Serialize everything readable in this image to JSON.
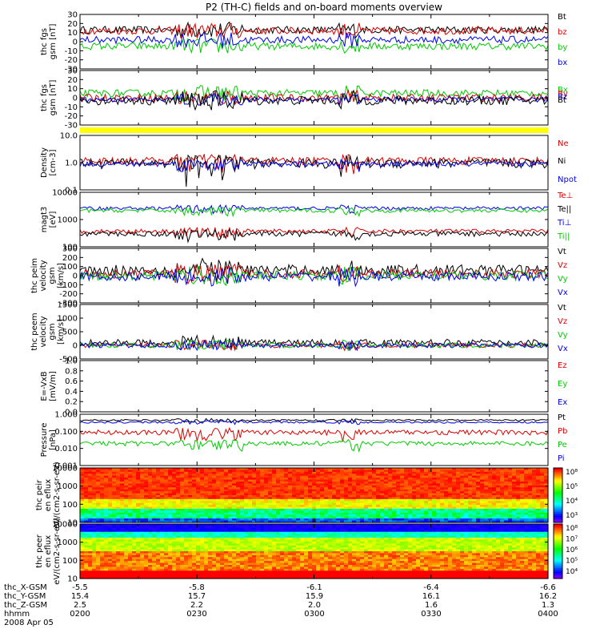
{
  "title": "P2 (TH-C) fields and on-board moments overview",
  "date": "2008 Apr 05",
  "orbit": {
    "row_labels": [
      "thc_X-GSM",
      "thc_Y-GSM",
      "thc_Z-GSM",
      "hhmm"
    ],
    "columns": [
      [
        "-5.5",
        "15.4",
        "2.5",
        "0200"
      ],
      [
        "-5.8",
        "15.7",
        "2.2",
        "0230"
      ],
      [
        "-6.1",
        "15.9",
        "2.0",
        "0300"
      ],
      [
        "-6.4",
        "16.1",
        "1.6",
        "0330"
      ],
      [
        "-6.6",
        "16.2",
        "1.3",
        "0400"
      ]
    ]
  },
  "chart_data": [
    {
      "type": "line",
      "ylabel": "thc fgs gsm [nT]",
      "ylim": [
        -30,
        30
      ],
      "y_ticks": [
        "30",
        "20",
        "10",
        "0",
        "-10",
        "-20",
        "-30"
      ],
      "series": [
        {
          "name": "Bt",
          "color": "#000000",
          "level": 13,
          "amp": 4
        },
        {
          "name": "bz",
          "color": "#dd0000",
          "level": 12,
          "amp": 4
        },
        {
          "name": "by",
          "color": "#00cc00",
          "level": -5,
          "amp": 4
        },
        {
          "name": "bx",
          "color": "#0000ee",
          "level": 2,
          "amp": 4
        }
      ]
    },
    {
      "type": "line",
      "ylabel": "thc fgs gsm [nT]",
      "ylim": [
        -30,
        30
      ],
      "y_ticks": [
        "30",
        "20",
        "10",
        "0",
        "-10",
        "-20",
        "-30"
      ],
      "series": [
        {
          "name": "Bx",
          "color": "#00cc00",
          "level": 5,
          "amp": 4
        },
        {
          "name": "By",
          "color": "#dd0000",
          "level": 0,
          "amp": 4
        },
        {
          "name": "Bz",
          "color": "#0000ee",
          "level": -2,
          "amp": 3
        },
        {
          "name": "Bt",
          "color": "#000000",
          "level": -3,
          "amp": 5
        }
      ]
    },
    {
      "type": "line",
      "ylabel": "Density [cm-3]",
      "ylim": [
        0.1,
        10
      ],
      "scale": "log",
      "y_ticks": [
        "10.0",
        "1.0",
        "0.1"
      ],
      "series": [
        {
          "name": "Ne",
          "color": "#dd0000",
          "level": 1.2,
          "amp": 0.4
        },
        {
          "name": "Ni",
          "color": "#000000",
          "level": 1.0,
          "amp": 0.4
        },
        {
          "name": "Npot",
          "color": "#0000ee",
          "level": 0.9,
          "amp": 0.2
        }
      ]
    },
    {
      "type": "line",
      "ylabel": "magt3 [eV]",
      "ylim": [
        30,
        30000
      ],
      "scale": "log",
      "y_ticks": [
        "10000",
        "1000",
        "100"
      ],
      "series": [
        {
          "name": "Te⊥",
          "color": "#dd0000",
          "level": 220,
          "amp": 60
        },
        {
          "name": "Te||",
          "color": "#000000",
          "level": 160,
          "amp": 50
        },
        {
          "name": "Ti⊥",
          "color": "#0000ee",
          "level": 4000,
          "amp": 900
        },
        {
          "name": "Ti||",
          "color": "#00cc00",
          "level": 3000,
          "amp": 700
        }
      ]
    },
    {
      "type": "line",
      "ylabel": "thc peim velocity gsm [km/s]",
      "ylim": [
        -300,
        300
      ],
      "y_ticks": [
        "300",
        "200",
        "100",
        "0",
        "-100",
        "-200",
        "-300"
      ],
      "series": [
        {
          "name": "Vt",
          "color": "#000000",
          "level": 60,
          "amp": 60
        },
        {
          "name": "Vz",
          "color": "#dd0000",
          "level": 20,
          "amp": 50
        },
        {
          "name": "Vy",
          "color": "#00cc00",
          "level": 0,
          "amp": 50
        },
        {
          "name": "Vx",
          "color": "#0000ee",
          "level": -10,
          "amp": 50
        }
      ]
    },
    {
      "type": "line",
      "ylabel": "thc peem velocity gsm [km/s]",
      "ylim": [
        -500,
        1500
      ],
      "y_ticks": [
        "1500",
        "1000",
        "500",
        "0",
        "-500"
      ],
      "series": [
        {
          "name": "Vt",
          "color": "#000000",
          "level": 100,
          "amp": 120
        },
        {
          "name": "Vz",
          "color": "#dd0000",
          "level": 0,
          "amp": 90
        },
        {
          "name": "Vy",
          "color": "#00cc00",
          "level": 0,
          "amp": 90
        },
        {
          "name": "Vx",
          "color": "#0000ee",
          "level": 0,
          "amp": 90
        }
      ]
    },
    {
      "type": "line",
      "ylabel": "E=-VxB [mV/m]",
      "ylim": [
        0,
        1
      ],
      "y_ticks": [
        "1.0",
        "0.8",
        "0.6",
        "0.4",
        "0.2",
        "0.0"
      ],
      "series": [
        {
          "name": "Ez",
          "color": "#dd0000"
        },
        {
          "name": "Ey",
          "color": "#00cc00"
        },
        {
          "name": "Ex",
          "color": "#0000ee"
        }
      ]
    },
    {
      "type": "line",
      "ylabel": "Pressure [nPa]",
      "ylim": [
        0.001,
        1
      ],
      "scale": "log",
      "y_ticks": [
        "1.000",
        "0.100",
        "0.010",
        "0.001"
      ],
      "series": [
        {
          "name": "Pt",
          "color": "#000000",
          "level": 0.45,
          "amp": 0.05
        },
        {
          "name": "Pb",
          "color": "#dd0000",
          "level": 0.09,
          "amp": 0.03
        },
        {
          "name": "Pe",
          "color": "#00cc00",
          "level": 0.02,
          "amp": 0.006
        },
        {
          "name": "Pi",
          "color": "#0000ee",
          "level": 0.34,
          "amp": 0.04
        }
      ]
    },
    {
      "type": "heatmap",
      "ylabel": "thc peir en eflux eV/(cm2-s-sr-eV)",
      "y_ticks": [
        "10000",
        "1000",
        "100",
        "10"
      ],
      "colorbar_ticks": [
        "10⁸",
        "10⁵",
        "10⁴",
        "10³"
      ]
    },
    {
      "type": "heatmap",
      "ylabel": "thc peer en eflux eV/(cm2-s-sr-eV)",
      "y_ticks": [
        "10000",
        "1000",
        "100",
        "10"
      ],
      "colorbar_ticks": [
        "10⁸",
        "10⁷",
        "10⁶",
        "10⁵",
        "10⁴"
      ]
    }
  ]
}
